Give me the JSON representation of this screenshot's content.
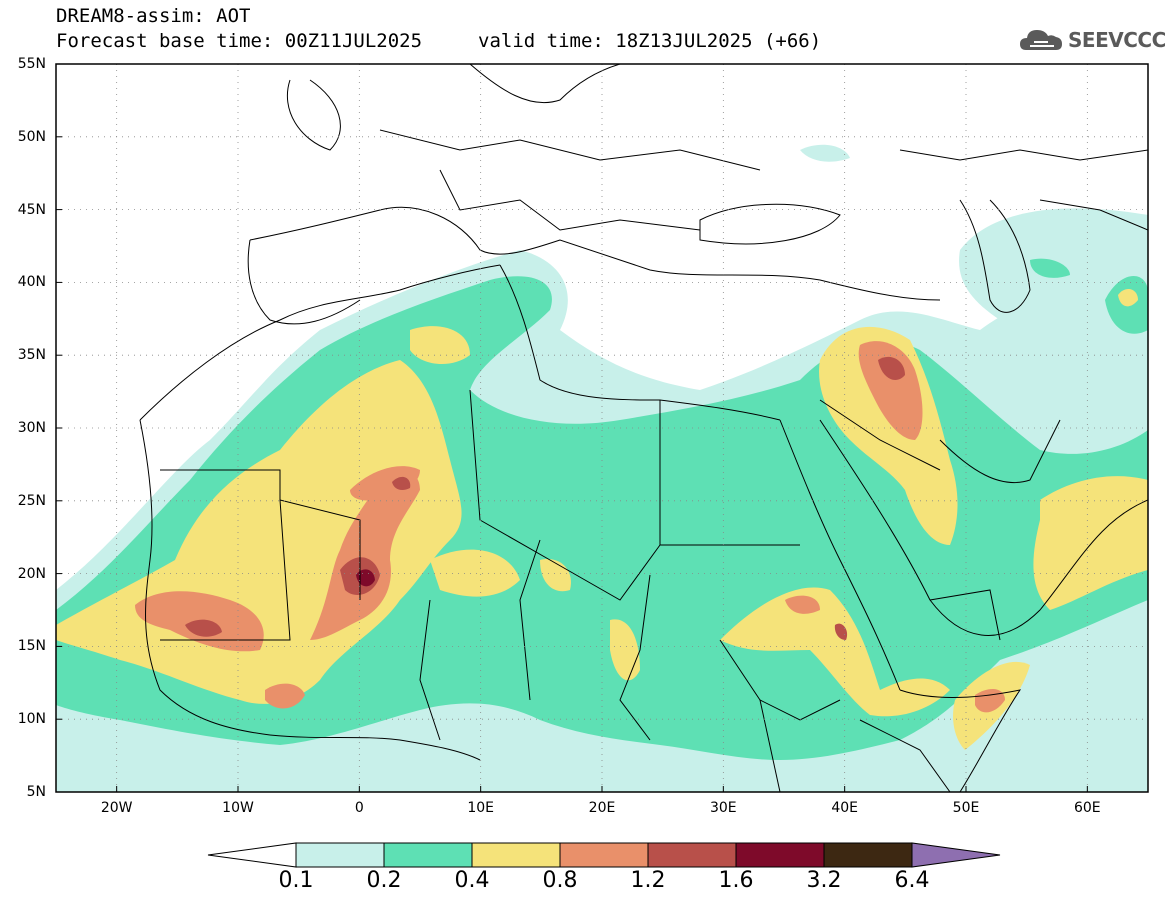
{
  "header": {
    "line1": "DREAM8-assim: AOT",
    "line2": "Forecast base time: 00Z11JUL2025",
    "valid": "valid time: 18Z13JUL2025 (+66)"
  },
  "logo": {
    "text": "SEEVCCC",
    "icon": "cloud-icon"
  },
  "map": {
    "lon_range": [
      -25,
      65
    ],
    "lat_range": [
      5,
      55
    ],
    "lat_labels": [
      "55N",
      "50N",
      "45N",
      "40N",
      "35N",
      "30N",
      "25N",
      "20N",
      "15N",
      "10N",
      "5N"
    ],
    "lon_labels": [
      "20W",
      "10W",
      "0",
      "10E",
      "20E",
      "30E",
      "40E",
      "50E",
      "60E"
    ]
  },
  "colorbar": {
    "labels": [
      "0.1",
      "0.2",
      "0.4",
      "0.8",
      "1.2",
      "1.6",
      "3.2",
      "6.4"
    ],
    "colors": [
      "#ffffff",
      "#c8f0ea",
      "#5ee0b4",
      "#f5e37a",
      "#e9906a",
      "#b8504a",
      "#7e0a2a",
      "#3d2812",
      "#8e6fb0"
    ]
  }
}
